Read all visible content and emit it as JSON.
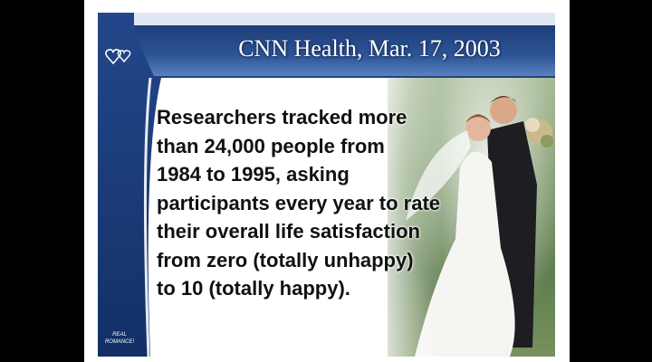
{
  "slide": {
    "title": "CNN Health, Mar. 17, 2003",
    "body_lines": [
      "Researchers tracked more",
      "than 24,000 people from",
      "1984 to 1995, asking",
      "participants every year to rate",
      "their overall life satisfaction",
      "from zero (totally unhappy)",
      "to 10 (totally happy)."
    ],
    "logo_line1": "REAL",
    "logo_line2": "ROMANCE!",
    "photo_subject": "wedding-couple-photo",
    "decor_icon": "hearts-icon"
  },
  "colors": {
    "title_bar": "#2d5597",
    "left_band": "#1f427f",
    "title_text": "#ffffff",
    "body_text": "#111111"
  }
}
